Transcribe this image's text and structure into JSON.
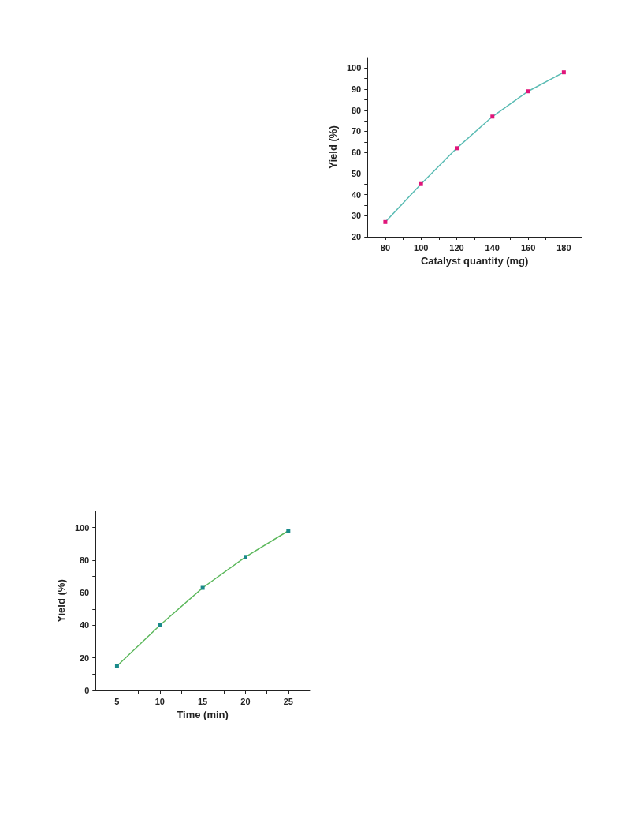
{
  "chart_data": [
    {
      "type": "line",
      "xlabel": "Catalyst quantity (mg)",
      "ylabel": "Yield (%)",
      "x": [
        80,
        100,
        120,
        140,
        160,
        180
      ],
      "series": [
        {
          "color": "#5bbcb4",
          "colors": [
            "#e0157a",
            "#e0157a",
            "#e0157a",
            "#e0157a",
            "#e0157a",
            "#e0157a"
          ],
          "values": [
            27,
            45,
            62,
            77,
            89,
            98
          ]
        }
      ],
      "xlim": [
        70,
        190
      ],
      "xticks": [
        80,
        {
          "value": 90,
          "label": null
        },
        100,
        {
          "value": 110,
          "label": null
        },
        120,
        {
          "value": 130,
          "label": null
        },
        140,
        {
          "value": 150,
          "label": null
        },
        160,
        {
          "value": 170,
          "label": null
        },
        180
      ],
      "ylim": [
        20,
        105
      ],
      "yticks": [
        20,
        {
          "value": 25,
          "label": null
        },
        30,
        {
          "value": 35,
          "label": null
        },
        40,
        {
          "value": 45,
          "label": null
        },
        50,
        {
          "value": 55,
          "label": null
        },
        60,
        {
          "value": 65,
          "label": null
        },
        70,
        {
          "value": 75,
          "label": null
        },
        80,
        {
          "value": 85,
          "label": null
        },
        90,
        {
          "value": 95,
          "label": null
        },
        100
      ],
      "grid": false,
      "marker": "square",
      "line_style": "solid"
    },
    {
      "type": "line",
      "xlabel": "Time (min)",
      "ylabel": "Yield (%)",
      "x": [
        5,
        10,
        15,
        20,
        25
      ],
      "series": [
        {
          "color": "#5cb85c",
          "colors": [
            "#1a8a8a",
            "#1a8a8a",
            "#1a8a8a",
            "#1a8a8a",
            "#1a8a8a"
          ],
          "values": [
            15,
            40,
            63,
            82,
            98
          ]
        }
      ],
      "xlim": [
        2.5,
        27.5
      ],
      "xticks": [
        5,
        {
          "value": 7.5,
          "label": null
        },
        10,
        {
          "value": 12.5,
          "label": null
        },
        15,
        {
          "value": 17.5,
          "label": null
        },
        20,
        {
          "value": 22.5,
          "label": null
        },
        25
      ],
      "ylim": [
        0,
        110
      ],
      "yticks": [
        0,
        {
          "value": 10,
          "label": null
        },
        20,
        {
          "value": 30,
          "label": null
        },
        40,
        {
          "value": 50,
          "label": null
        },
        60,
        {
          "value": 70,
          "label": null
        },
        80,
        {
          "value": 90,
          "label": null
        },
        100
      ],
      "grid": false,
      "marker": "square",
      "line_style": "solid"
    }
  ]
}
